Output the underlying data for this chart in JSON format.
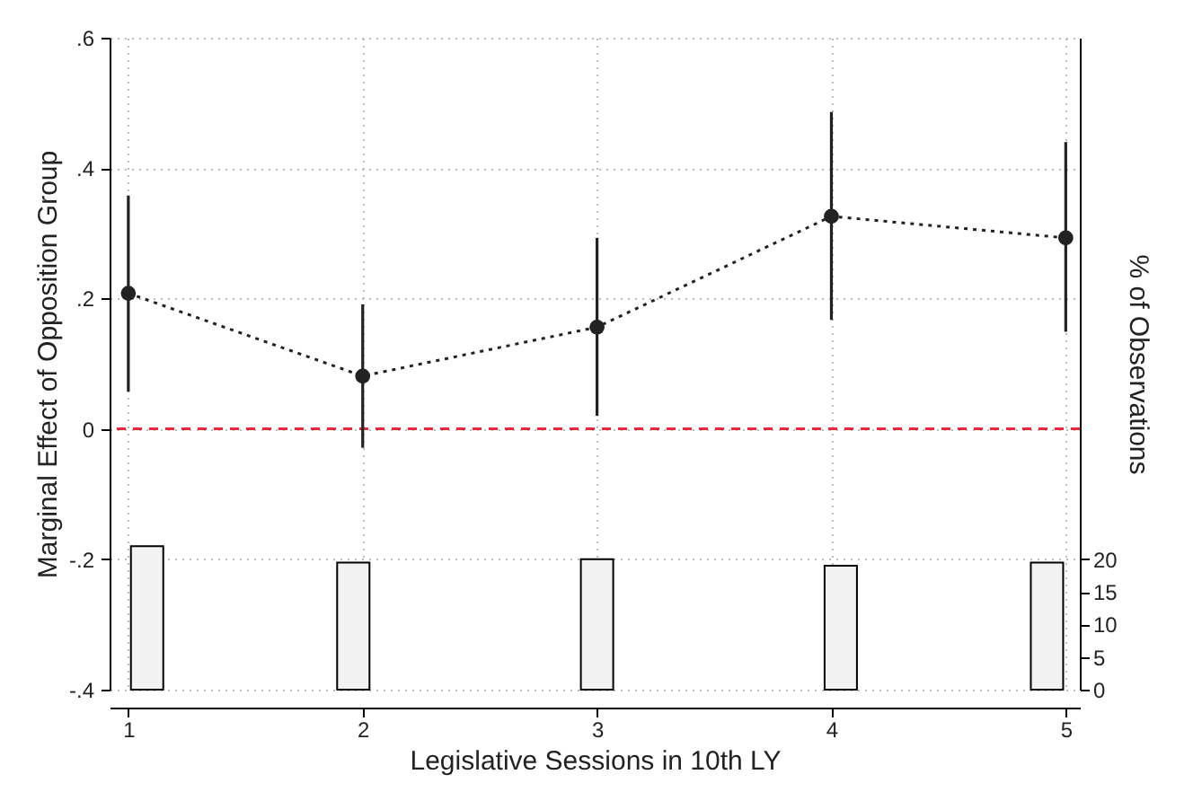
{
  "chart_data": {
    "type": "line",
    "xlabel": "Legislative Sessions in 10th LY",
    "ylabel": "Marginal Effect of Opposition Group",
    "y2label": "% of Observations",
    "x": [
      1,
      2,
      3,
      4,
      5
    ],
    "xlim": [
      0.92,
      5.06
    ],
    "xticks": [
      1,
      2,
      3,
      4,
      5
    ],
    "ylim": [
      -0.4,
      0.6
    ],
    "yticks": [
      {
        "value": -0.4,
        "label": "-.4"
      },
      {
        "value": -0.2,
        "label": "-.2"
      },
      0,
      {
        "value": 0.2,
        "label": ".2"
      },
      {
        "value": 0.4,
        "label": ".4"
      },
      {
        "value": 0.6,
        "label": ".6"
      }
    ],
    "y2lim": [
      0,
      100
    ],
    "y2ticks": [
      0,
      5,
      10,
      15,
      20
    ],
    "series": [
      {
        "color": "#222222",
        "values": [
          0.208,
          0.081,
          0.156,
          0.326,
          0.293
        ],
        "errors": [
          [
            0.057,
            0.358
          ],
          [
            -0.029,
            0.191
          ],
          [
            0.02,
            0.293
          ],
          [
            0.167,
            0.486
          ],
          [
            0.149,
            0.44
          ]
        ]
      },
      {
        "type": "bar",
        "axis": "y2",
        "color": "#f2f2f2",
        "x": [
          1.08,
          1.96,
          3,
          4.04,
          4.92
        ],
        "values": [
          22,
          19.5,
          20,
          19,
          19.5
        ]
      }
    ],
    "ref_lines": [
      {
        "axis": "y",
        "value": 0,
        "color": "#e8283a",
        "line_style": "dashed"
      }
    ],
    "grid": true,
    "marker": "circle",
    "line_style": "dotted"
  }
}
